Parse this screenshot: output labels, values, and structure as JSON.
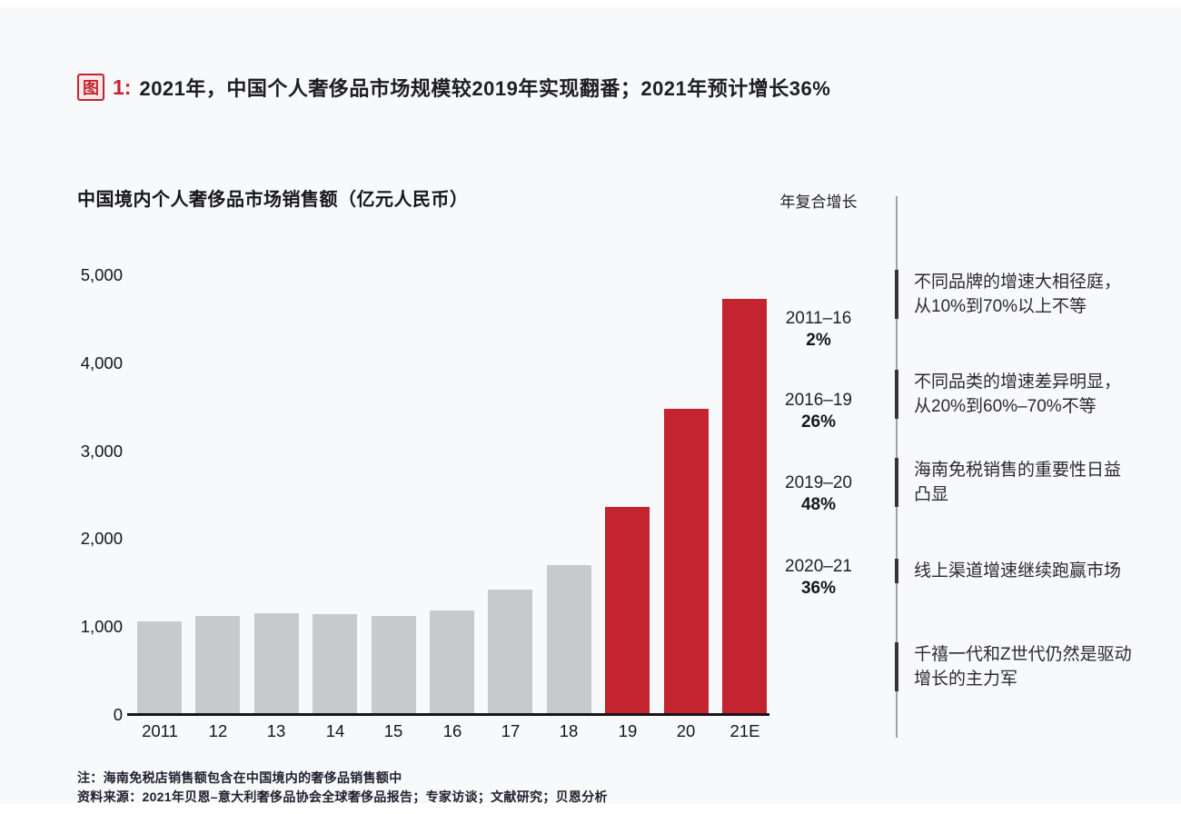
{
  "page": {
    "figure_label": "图",
    "figure_number": "1:",
    "title": "2021年，中国个人奢侈品市场规模较2019年实现翻番；2021年预计增长36%",
    "note": "注：海南免税店销售额包含在中国境内的奢侈品销售额中",
    "source": "资料来源：2021年贝恩–意大利奢侈品协会全球奢侈品报告；专家访谈；文献研究；贝恩分析"
  },
  "colors": {
    "accent_red": "#c3242f",
    "bar_gray": "#c7cacc",
    "axis_black": "#17161c",
    "divider_gray": "#a29daa"
  },
  "chart_data": {
    "type": "bar",
    "title": "中国境内个人奢侈品市场销售额（亿元人民币）",
    "cagr_header": "年复合增长",
    "categories": [
      "2011",
      "12",
      "13",
      "14",
      "15",
      "16",
      "17",
      "18",
      "19",
      "20",
      "21E"
    ],
    "values": [
      1040,
      1110,
      1140,
      1130,
      1110,
      1170,
      1400,
      1680,
      2340,
      3460,
      4710
    ],
    "bar_colors": [
      "gray",
      "gray",
      "gray",
      "gray",
      "gray",
      "gray",
      "gray",
      "gray",
      "red",
      "red",
      "red"
    ],
    "ylim": [
      0,
      5000
    ],
    "yticks": [
      0,
      1000,
      2000,
      3000,
      4000,
      5000
    ],
    "ytick_labels": [
      "0",
      "1,000",
      "2,000",
      "3,000",
      "4,000",
      "5,000"
    ],
    "grid": false,
    "legend": "none",
    "cagr_annotations": [
      {
        "range": "2011–16",
        "value": "2%"
      },
      {
        "range": "2016–19",
        "value": "26%"
      },
      {
        "range": "2019–20",
        "value": "48%"
      },
      {
        "range": "2020–21",
        "value": "36%"
      }
    ],
    "side_annotations": [
      {
        "lines": [
          "不同品牌的增速大相径庭，",
          "从10%到70%以上不等"
        ]
      },
      {
        "lines": [
          "不同品类的增速差异明显，",
          "从20%到60%–70%不等"
        ]
      },
      {
        "lines": [
          "海南免税销售的重要性日益",
          "凸显"
        ]
      },
      {
        "lines": [
          "线上渠道增速继续跑赢市场"
        ]
      },
      {
        "lines": [
          "千禧一代和Z世代仍然是驱动",
          "增长的主力军"
        ]
      }
    ]
  }
}
